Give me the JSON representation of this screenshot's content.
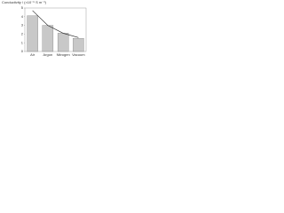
{
  "chart_data": {
    "type": "bar",
    "y_label": "Conductivity / (×10⁻⁵ S m⁻¹)",
    "categories": [
      "Air",
      "Argon",
      "Nitrogen",
      "Vacuum"
    ],
    "values": [
      4.1,
      3.0,
      2.1,
      1.5
    ],
    "color": "#c8c8c8",
    "line_values": [
      4.7,
      3.0,
      2.1,
      1.6
    ],
    "line_color": "#222222",
    "ylim": [
      0,
      5
    ],
    "yticks": [
      0,
      1,
      2,
      3,
      4,
      5
    ],
    "grid": false
  }
}
